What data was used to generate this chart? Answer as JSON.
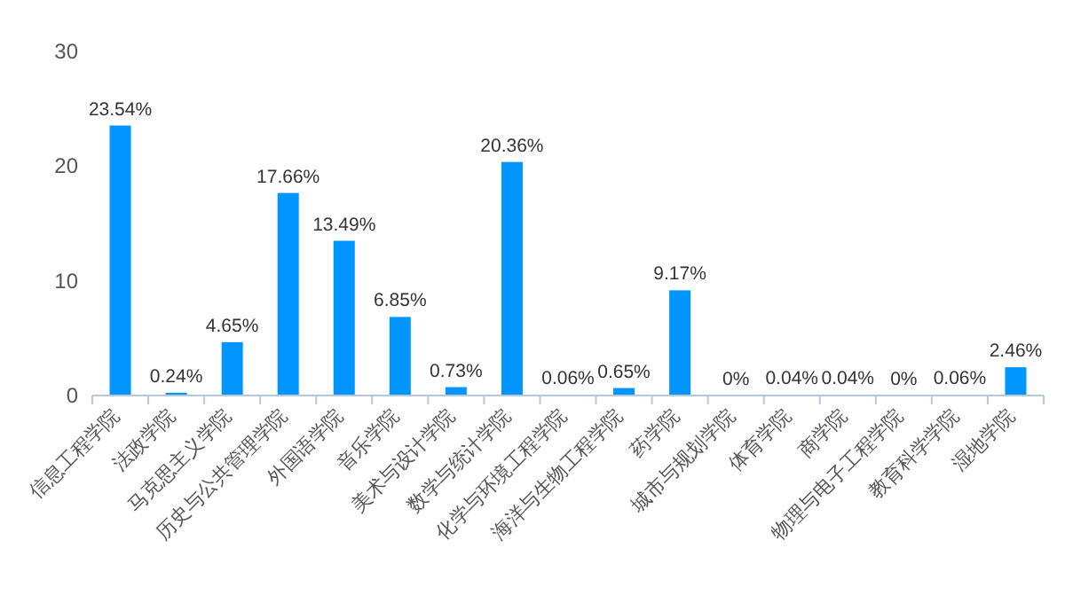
{
  "chart_data": {
    "type": "bar",
    "categories": [
      "信息工程学院",
      "法政学院",
      "马克思主义学院",
      "历史与公共管理学院",
      "外国语学院",
      "音乐学院",
      "美术与设计学院",
      "数学与统计学院",
      "化学与环境工程学院",
      "海洋与生物工程学院",
      "药学院",
      "城市与规划学院",
      "体育学院",
      "商学院",
      "物理与电子工程学院",
      "教育科学学院",
      "湿地学院"
    ],
    "values": [
      23.54,
      0.24,
      4.65,
      17.66,
      13.49,
      6.85,
      0.73,
      20.36,
      0.06,
      0.65,
      9.17,
      0,
      0.04,
      0.04,
      0,
      0.06,
      2.46
    ],
    "value_labels": [
      "23.54%",
      "0.24%",
      "4.65%",
      "17.66%",
      "13.49%",
      "6.85%",
      "0.73%",
      "20.36%",
      "0.06%",
      "0.65%",
      "9.17%",
      "0%",
      "0.04%",
      "0.04%",
      "0%",
      "0.06%",
      "2.46%"
    ],
    "color": "#0095ff",
    "ylim": [
      0,
      30
    ],
    "yticks": [
      0,
      10,
      20,
      30
    ],
    "grid": false
  }
}
